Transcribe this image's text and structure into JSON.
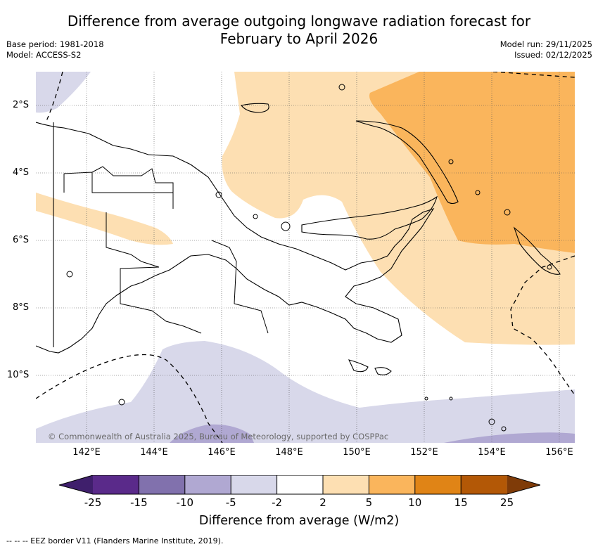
{
  "title_line1": "Difference from average outgoing longwave radiation forecast for",
  "title_line2": "February to April 2026",
  "base_period": "Base period: 1981-2018",
  "model": "Model: ACCESS-S2",
  "model_run": "Model run: 29/11/2025",
  "issued": "Issued: 02/12/2025",
  "map": {
    "region": "Papua New Guinea",
    "lon_range": [
      140.6,
      156.5
    ],
    "lat_range": [
      -12.0,
      -1.0
    ],
    "lat_ticks": [
      "2°S",
      "4°S",
      "6°S",
      "8°S",
      "10°S"
    ],
    "lon_ticks": [
      "142°E",
      "144°E",
      "146°E",
      "148°E",
      "150°E",
      "152°E",
      "154°E",
      "156°E"
    ],
    "anomaly_regions": [
      "2 to 5 W/m2 (light orange) over the Bismarck Sea, New Ireland and a band across the western mainland",
      "5 to 10 W/m2 (orange) over the north-east near New Ireland and Bougainville",
      "-5 to -2 W/m2 (light purple) over the Coral Sea and Solomon Sea to the south",
      "-10 to -5 W/m2 (purple) small patches along the southern edge"
    ]
  },
  "colorbar": {
    "ticks": [
      "-25",
      "-15",
      "-10",
      "-5",
      "-2",
      "2",
      "5",
      "10",
      "15",
      "25"
    ],
    "colors": [
      "#3f1f6c",
      "#5a2a8a",
      "#8171ad",
      "#b0a8d2",
      "#d8d8ea",
      "#ffffff",
      "#fddfb2",
      "#fab55c",
      "#e08416",
      "#b35806",
      "#7f3b08"
    ],
    "title": "Difference from average (W/m2)"
  },
  "copyright": "© Commonwealth of Australia 2025, Bureau of Meteorology, supported by COSPPac",
  "footnote": "--  --  -- EEZ border V11 (Flanders Marine Institute, 2019)."
}
